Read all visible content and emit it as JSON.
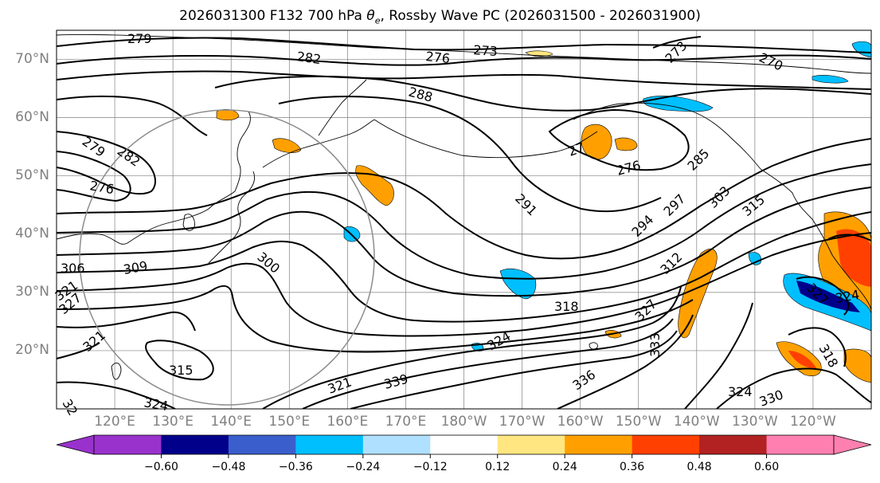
{
  "title": {
    "prefix": "2026031300 F132 700 hPa ",
    "symbol": "θ",
    "subscript": "e",
    "suffix": ", Rossby Wave PC (2026031500 - 2026031900)"
  },
  "map": {
    "projection": "cylindrical, Pacific-centered",
    "lat_range": [
      10,
      75
    ],
    "lon_range_east": [
      110,
      250
    ],
    "lat_labels": [
      "70°N",
      "60°N",
      "50°N",
      "40°N",
      "30°N",
      "20°N"
    ],
    "lon_labels": [
      "120°E",
      "130°E",
      "140°E",
      "150°E",
      "160°E",
      "170°E",
      "180°W",
      "170°W",
      "160°W",
      "150°W",
      "140°W",
      "130°W",
      "120°W"
    ],
    "gridlines": true,
    "contour_field": "700 hPa theta-e (K)",
    "contour_labels": [
      "279",
      "282",
      "276",
      "273",
      "288",
      "273",
      "270",
      "279",
      "282",
      "276",
      "291",
      "285",
      "276",
      "27",
      "294",
      "297",
      "303",
      "315",
      "306",
      "309",
      "300",
      "312",
      "318",
      "324",
      "321",
      "327",
      "321",
      "315",
      "324",
      "339",
      "321",
      "336",
      "333",
      "327",
      "324",
      "330",
      "318",
      "324",
      "327",
      "32"
    ],
    "colors": {
      "contour": "#000000",
      "grid": "#808080",
      "axis_label": "#808080",
      "positive_pc": [
        "#ffe680",
        "#ffa000",
        "#ff4000",
        "#b22222",
        "#ff80b0"
      ],
      "negative_pc": [
        "#9932cc",
        "#00008b",
        "#3a5fcd",
        "#00bfff",
        "#b0e0ff"
      ]
    }
  },
  "colorbar": {
    "labels": [
      "−0.60",
      "−0.48",
      "−0.36",
      "−0.24",
      "−0.12",
      "0.12",
      "0.24",
      "0.36",
      "0.48",
      "0.60"
    ],
    "colors": [
      "#9932cc",
      "#00008b",
      "#3a5fcd",
      "#00bfff",
      "#b0e0ff",
      "#ffffff",
      "#ffe680",
      "#ffa000",
      "#ff4000",
      "#b22222",
      "#ff80b0"
    ]
  }
}
